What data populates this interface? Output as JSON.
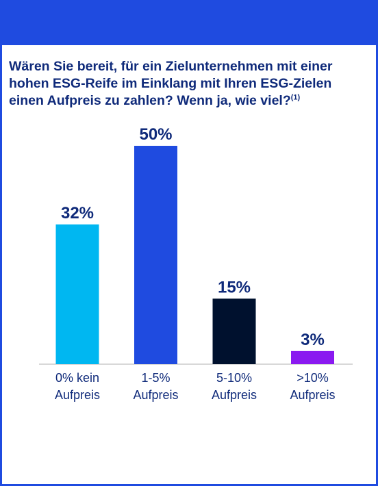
{
  "question": {
    "text": "Wären Sie bereit, für ein Zielunternehmen mit einer hohen ESG-Reife im Einklang mit Ihren ESG-Zielen einen Aufpreis zu zahlen? Wenn ja, wie viel?",
    "footnote_ref": "(1)"
  },
  "colors": {
    "brand": "#1f4be0",
    "text": "#0f2a7a"
  },
  "chart_data": {
    "type": "bar",
    "categories": [
      [
        "0% kein",
        "Aufpreis"
      ],
      [
        "1-5%",
        "Aufpreis"
      ],
      [
        "5-10%",
        "Aufpreis"
      ],
      [
        ">10%",
        "Aufpreis"
      ]
    ],
    "values": [
      32,
      50,
      15,
      3
    ],
    "value_labels": [
      "32%",
      "50%",
      "15%",
      "3%"
    ],
    "bar_colors": [
      "#00b7f1",
      "#1f4be0",
      "#00112e",
      "#8a19f0"
    ],
    "ylim": [
      0,
      50
    ],
    "grid": false,
    "legend": "none",
    "xlabel": "",
    "ylabel": ""
  }
}
